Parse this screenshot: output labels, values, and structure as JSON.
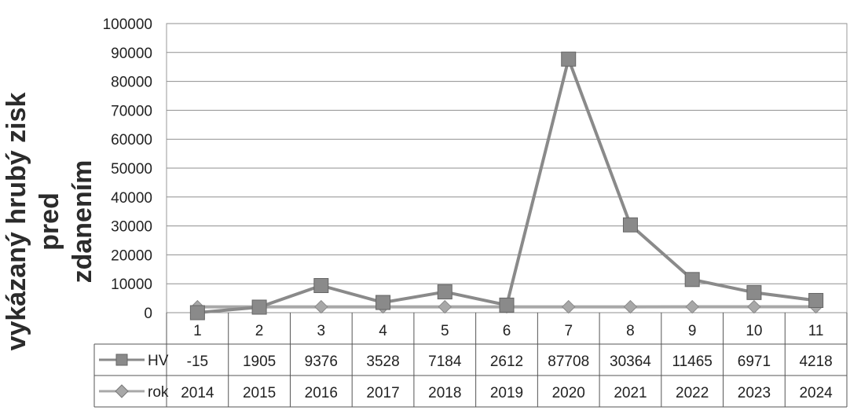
{
  "chart_data": {
    "type": "line",
    "ylabel_lines": [
      "vykázaný hrubý zisk pred",
      "zdanením"
    ],
    "categories": [
      "1",
      "2",
      "3",
      "4",
      "5",
      "6",
      "7",
      "8",
      "9",
      "10",
      "11"
    ],
    "ylim": [
      0,
      100000
    ],
    "yticks": [
      "0",
      "10000",
      "20000",
      "30000",
      "40000",
      "50000",
      "60000",
      "70000",
      "80000",
      "90000",
      "100000"
    ],
    "grid": true,
    "series": [
      {
        "name": "HV",
        "marker": "square",
        "color": "#8a8a8a",
        "values": [
          -15,
          1905,
          9376,
          3528,
          7184,
          2612,
          87708,
          30364,
          11465,
          6971,
          4218
        ]
      },
      {
        "name": "rok",
        "marker": "diamond",
        "color": "#a8a8a8",
        "values": [
          2014,
          2015,
          2016,
          2017,
          2018,
          2019,
          2020,
          2021,
          2022,
          2023,
          2024
        ]
      }
    ],
    "table": {
      "rows": [
        {
          "label": "HV",
          "cells": [
            "-15",
            "1905",
            "9376",
            "3528",
            "7184",
            "2612",
            "87708",
            "30364",
            "11465",
            "6971",
            "4218"
          ]
        },
        {
          "label": "rok",
          "cells": [
            "2014",
            "2015",
            "2016",
            "2017",
            "2018",
            "2019",
            "2020",
            "2021",
            "2022",
            "2023",
            "2024"
          ]
        }
      ]
    }
  }
}
